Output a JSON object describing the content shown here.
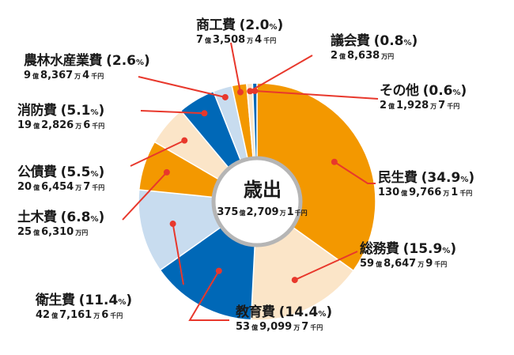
{
  "chart_data": {
    "type": "pie",
    "variant": "donut",
    "title": "歳出",
    "total": "375億2,709万1千円",
    "center": {
      "title": "歳出",
      "amount": [
        "375",
        "億",
        "2,709",
        "万",
        "1",
        "千円"
      ]
    },
    "colors": {
      "orange": "#f39800",
      "cream": "#fbe5c8",
      "blue": "#0068b7",
      "lightblue": "#c8dcef",
      "leader": "#e8382c"
    },
    "categories": [
      "民生費",
      "総務費",
      "教育費",
      "衛生費",
      "土木費",
      "公債費",
      "消防費",
      "農林水産業費",
      "商工費",
      "議会費",
      "その他"
    ],
    "values": [
      34.9,
      15.9,
      14.4,
      11.4,
      6.8,
      5.5,
      5.1,
      2.6,
      2.0,
      0.8,
      0.6
    ],
    "amounts": [
      "130億9,766万1千円",
      "59億8,647万9千円",
      "53億9,099万7千円",
      "42億7,161万6千円",
      "25億6,310万円",
      "20億6,454万7千円",
      "19億2,826万6千円",
      "9億8,367万4千円",
      "7億3,508万4千円",
      "2億8,638万円",
      "2億1,928万7千円"
    ],
    "slice_colors": [
      "#f39800",
      "#fbe5c8",
      "#0068b7",
      "#c8dcef",
      "#f39800",
      "#fbe5c8",
      "#0068b7",
      "#c8dcef",
      "#f39800",
      "#fbe5c8",
      "#0068b7"
    ],
    "unit": "%"
  },
  "labels": [
    {
      "name": "民生費",
      "pct": "34.9",
      "amt": [
        "130",
        "億",
        "9,766",
        "万",
        "1",
        "千円"
      ]
    },
    {
      "name": "総務費",
      "pct": "15.9",
      "amt": [
        "59",
        "億",
        "8,647",
        "万",
        "9",
        "千円"
      ]
    },
    {
      "name": "教育費",
      "pct": "14.4",
      "amt": [
        "53",
        "億",
        "9,099",
        "万",
        "7",
        "千円"
      ]
    },
    {
      "name": "衛生費",
      "pct": "11.4",
      "amt": [
        "42",
        "億",
        "7,161",
        "万",
        "6",
        "千円"
      ]
    },
    {
      "name": "土木費",
      "pct": "6.8",
      "amt": [
        "25",
        "億",
        "6,310",
        "万円",
        "",
        ""
      ]
    },
    {
      "name": "公債費",
      "pct": "5.5",
      "amt": [
        "20",
        "億",
        "6,454",
        "万",
        "7",
        "千円"
      ]
    },
    {
      "name": "消防費",
      "pct": "5.1",
      "amt": [
        "19",
        "億",
        "2,826",
        "万",
        "6",
        "千円"
      ]
    },
    {
      "name": "農林水産業費",
      "pct": "2.6",
      "amt": [
        "9",
        "億",
        "8,367",
        "万",
        "4",
        "千円"
      ]
    },
    {
      "name": "商工費",
      "pct": "2.0",
      "amt": [
        "7",
        "億",
        "3,508",
        "万",
        "4",
        "千円"
      ]
    },
    {
      "name": "議会費",
      "pct": "0.8",
      "amt": [
        "2",
        "億",
        "8,638",
        "万円",
        "",
        ""
      ]
    },
    {
      "name": "その他",
      "pct": "0.6",
      "amt": [
        "2",
        "億",
        "1,928",
        "万",
        "7",
        "千円"
      ]
    }
  ],
  "pct_suffix": "%"
}
